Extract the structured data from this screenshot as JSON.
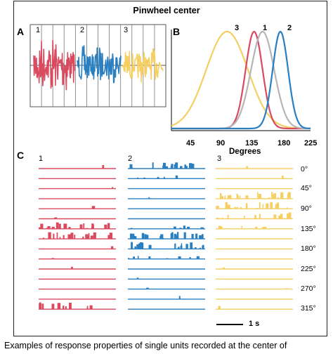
{
  "title": "Pinwheel center",
  "panels": {
    "a": "A",
    "b": "B",
    "c": "C"
  },
  "panel_a": {
    "unit_labels": [
      "1",
      "2",
      "3"
    ]
  },
  "panel_c": {
    "unit_labels": [
      "1",
      "2",
      "3"
    ],
    "orientations": [
      "0°",
      "45°",
      "90°",
      "135°",
      "180°",
      "225°",
      "270°",
      "315°"
    ],
    "scale_bar": "1 s"
  },
  "chart_data": {
    "type": "line",
    "title": "",
    "xlabel": "Degrees",
    "ylabel": "",
    "x_ticks": [
      "45",
      "90",
      "135",
      "180",
      "225"
    ],
    "xlim": [
      45,
      225
    ],
    "curve_labels": [
      "3",
      "1",
      "2"
    ],
    "series": [
      {
        "id": "3",
        "color": "#f5cf62",
        "peak_x": 117,
        "width": 27
      },
      {
        "id": "1",
        "color": "#d94a5f",
        "peak_x": 152,
        "width": 11
      },
      {
        "id": "gray",
        "color": "#b5b5b5",
        "peak_x": 163,
        "width": 15
      },
      {
        "id": "2",
        "color": "#2a7fc1",
        "peak_x": 186,
        "width": 10
      }
    ]
  },
  "caption": "Examples of response properties of single units recorded at the center of"
}
